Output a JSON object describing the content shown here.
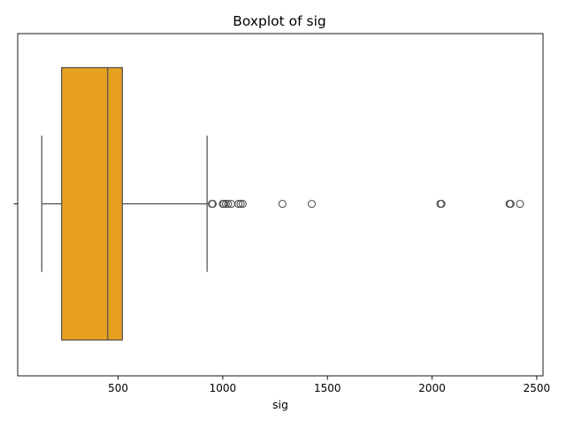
{
  "chart_data": {
    "type": "boxplot",
    "title": "Boxplot of sig",
    "xlabel": "sig",
    "ylabel": "",
    "orientation": "horizontal",
    "xlim": [
      20,
      2530
    ],
    "x_ticks": [
      {
        "value": 500,
        "label": "500"
      },
      {
        "value": 1000,
        "label": "1000"
      },
      {
        "value": 1500,
        "label": "1500"
      },
      {
        "value": 2000,
        "label": "2000"
      },
      {
        "value": 2500,
        "label": "2500"
      }
    ],
    "box": {
      "whisker_low": 135,
      "q1": 230,
      "median": 450,
      "q3": 520,
      "whisker_high": 925
    },
    "outliers": [
      948,
      952,
      1000,
      1005,
      1015,
      1025,
      1040,
      1075,
      1085,
      1095,
      1285,
      1425,
      2040,
      2045,
      2370,
      2375,
      2420
    ],
    "colors": {
      "box_fill": "#E8A021",
      "lines": "#4d4d4d",
      "axes": "#000000"
    },
    "grid": false,
    "legend": "none"
  }
}
